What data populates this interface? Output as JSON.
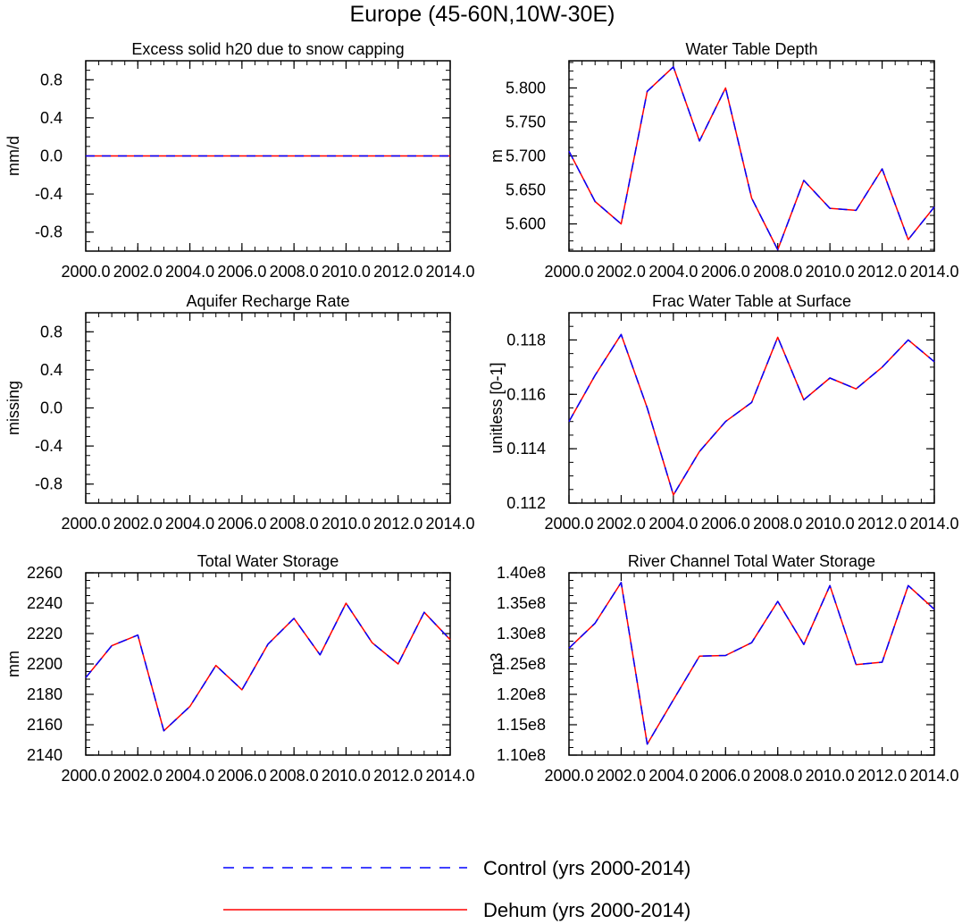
{
  "figure": {
    "title": "Europe (45-60N,10W-30E)"
  },
  "legend": {
    "placement": "bottom-center",
    "entries": [
      {
        "label": "Control (yrs 2000-2014)",
        "color": "#0000ff",
        "dash": "dashed"
      },
      {
        "label": "Dehum (yrs 2000-2014)",
        "color": "#ff0000",
        "dash": "solid"
      }
    ]
  },
  "chart_data": [
    {
      "type": "line",
      "title": "Excess solid h20 due to snow capping",
      "ylabel": "mm/d",
      "xlim": [
        2000,
        2014
      ],
      "ylim": [
        -1.0,
        1.0
      ],
      "yticks": [
        -0.8,
        -0.4,
        0.0,
        0.4,
        0.8
      ],
      "ytick_labels": [
        "-0.8",
        "-0.4",
        "0.0",
        "0.4",
        "0.8"
      ],
      "xticks": [
        2000,
        2002,
        2004,
        2006,
        2008,
        2010,
        2012,
        2014
      ],
      "xtick_labels": [
        "2000.0",
        "2002.0",
        "2004.0",
        "2006.0",
        "2008.0",
        "2010.0",
        "2012.0",
        "2014.0"
      ],
      "x": [
        2000,
        2001,
        2002,
        2003,
        2004,
        2005,
        2006,
        2007,
        2008,
        2009,
        2010,
        2011,
        2012,
        2013,
        2014
      ],
      "series": [
        {
          "name": "Control (yrs 2000-2014)",
          "values": [
            0,
            0,
            0,
            0,
            0,
            0,
            0,
            0,
            0,
            0,
            0,
            0,
            0,
            0,
            0
          ]
        },
        {
          "name": "Dehum (yrs 2000-2014)",
          "values": [
            0,
            0,
            0,
            0,
            0,
            0,
            0,
            0,
            0,
            0,
            0,
            0,
            0,
            0,
            0
          ]
        }
      ]
    },
    {
      "type": "line",
      "title": "Water Table Depth",
      "ylabel": "m",
      "xlim": [
        2000,
        2014
      ],
      "ylim": [
        5.56,
        5.84
      ],
      "yticks": [
        5.6,
        5.65,
        5.7,
        5.75,
        5.8
      ],
      "ytick_labels": [
        "5.600",
        "5.650",
        "5.700",
        "5.750",
        "5.800"
      ],
      "xticks": [
        2000,
        2002,
        2004,
        2006,
        2008,
        2010,
        2012,
        2014
      ],
      "xtick_labels": [
        "2000.0",
        "2002.0",
        "2004.0",
        "2006.0",
        "2008.0",
        "2010.0",
        "2012.0",
        "2014.0"
      ],
      "x": [
        2000,
        2001,
        2002,
        2003,
        2004,
        2005,
        2006,
        2007,
        2008,
        2009,
        2010,
        2011,
        2012,
        2013,
        2014
      ],
      "series": [
        {
          "name": "Control (yrs 2000-2014)",
          "values": [
            5.707,
            5.633,
            5.6,
            5.795,
            5.831,
            5.722,
            5.8,
            5.638,
            5.562,
            5.664,
            5.623,
            5.62,
            5.681,
            5.577,
            5.625
          ]
        },
        {
          "name": "Dehum (yrs 2000-2014)",
          "values": [
            5.707,
            5.633,
            5.6,
            5.795,
            5.831,
            5.722,
            5.8,
            5.638,
            5.562,
            5.664,
            5.623,
            5.62,
            5.681,
            5.577,
            5.625
          ]
        }
      ]
    },
    {
      "type": "line",
      "title": "Aquifer Recharge Rate",
      "ylabel": "missing",
      "xlim": [
        2000,
        2014
      ],
      "ylim": [
        -1.0,
        1.0
      ],
      "yticks": [
        -0.8,
        -0.4,
        0.0,
        0.4,
        0.8
      ],
      "ytick_labels": [
        "-0.8",
        "-0.4",
        "0.0",
        "0.4",
        "0.8"
      ],
      "xticks": [
        2000,
        2002,
        2004,
        2006,
        2008,
        2010,
        2012,
        2014
      ],
      "xtick_labels": [
        "2000.0",
        "2002.0",
        "2004.0",
        "2006.0",
        "2008.0",
        "2010.0",
        "2012.0",
        "2014.0"
      ],
      "x": [],
      "series": []
    },
    {
      "type": "line",
      "title": "Frac Water Table at Surface",
      "ylabel": "unitless [0-1]",
      "xlim": [
        2000,
        2014
      ],
      "ylim": [
        0.112,
        0.119
      ],
      "yticks": [
        0.112,
        0.114,
        0.116,
        0.118
      ],
      "ytick_labels": [
        "0.112",
        "0.114",
        "0.116",
        "0.118"
      ],
      "xticks": [
        2000,
        2002,
        2004,
        2006,
        2008,
        2010,
        2012,
        2014
      ],
      "xtick_labels": [
        "2000.0",
        "2002.0",
        "2004.0",
        "2006.0",
        "2008.0",
        "2010.0",
        "2012.0",
        "2014.0"
      ],
      "x": [
        2000,
        2001,
        2002,
        2003,
        2004,
        2005,
        2006,
        2007,
        2008,
        2009,
        2010,
        2011,
        2012,
        2013,
        2014
      ],
      "series": [
        {
          "name": "Control (yrs 2000-2014)",
          "values": [
            0.115,
            0.1167,
            0.1182,
            0.1155,
            0.1123,
            0.1139,
            0.115,
            0.1157,
            0.1181,
            0.1158,
            0.1166,
            0.1162,
            0.117,
            0.118,
            0.1172
          ]
        },
        {
          "name": "Dehum (yrs 2000-2014)",
          "values": [
            0.115,
            0.1167,
            0.1182,
            0.1155,
            0.1123,
            0.1139,
            0.115,
            0.1157,
            0.1181,
            0.1158,
            0.1166,
            0.1162,
            0.117,
            0.118,
            0.1172
          ]
        }
      ]
    },
    {
      "type": "line",
      "title": "Total Water Storage",
      "ylabel": "mm",
      "xlim": [
        2000,
        2014
      ],
      "ylim": [
        2140,
        2260
      ],
      "yticks": [
        2140,
        2160,
        2180,
        2200,
        2220,
        2240,
        2260
      ],
      "ytick_labels": [
        "2140",
        "2160",
        "2180",
        "2200",
        "2220",
        "2240",
        "2260"
      ],
      "xticks": [
        2000,
        2002,
        2004,
        2006,
        2008,
        2010,
        2012,
        2014
      ],
      "xtick_labels": [
        "2000.0",
        "2002.0",
        "2004.0",
        "2006.0",
        "2008.0",
        "2010.0",
        "2012.0",
        "2014.0"
      ],
      "x": [
        2000,
        2001,
        2002,
        2003,
        2004,
        2005,
        2006,
        2007,
        2008,
        2009,
        2010,
        2011,
        2012,
        2013,
        2014
      ],
      "series": [
        {
          "name": "Control (yrs 2000-2014)",
          "values": [
            2191,
            2212,
            2219,
            2156,
            2172,
            2199,
            2183,
            2213,
            2230,
            2206,
            2240,
            2214,
            2200,
            2234,
            2216
          ]
        },
        {
          "name": "Dehum (yrs 2000-2014)",
          "values": [
            2191,
            2212,
            2219,
            2156,
            2172,
            2199,
            2183,
            2213,
            2230,
            2206,
            2240,
            2214,
            2200,
            2234,
            2216
          ]
        }
      ]
    },
    {
      "type": "line",
      "title": "River Channel Total Water Storage",
      "ylabel": "m3",
      "xlim": [
        2000,
        2014
      ],
      "ylim": [
        110000000,
        140000000
      ],
      "yticks": [
        110000000,
        115000000,
        120000000,
        125000000,
        130000000,
        135000000,
        140000000
      ],
      "ytick_labels": [
        "1.10e8",
        "1.15e8",
        "1.20e8",
        "1.25e8",
        "1.30e8",
        "1.35e8",
        "1.40e8"
      ],
      "xticks": [
        2000,
        2002,
        2004,
        2006,
        2008,
        2010,
        2012,
        2014
      ],
      "xtick_labels": [
        "2000.0",
        "2002.0",
        "2004.0",
        "2006.0",
        "2008.0",
        "2010.0",
        "2012.0",
        "2014.0"
      ],
      "x": [
        2000,
        2001,
        2002,
        2003,
        2004,
        2005,
        2006,
        2007,
        2008,
        2009,
        2010,
        2011,
        2012,
        2013,
        2014
      ],
      "series": [
        {
          "name": "Control (yrs 2000-2014)",
          "values": [
            127600000,
            131700000,
            138400000,
            111800000,
            119100000,
            126300000,
            126400000,
            128500000,
            135300000,
            128200000,
            137900000,
            124900000,
            125300000,
            137900000,
            134000000
          ]
        },
        {
          "name": "Dehum (yrs 2000-2014)",
          "values": [
            127600000,
            131700000,
            138400000,
            111800000,
            119100000,
            126300000,
            126400000,
            128500000,
            135300000,
            128200000,
            137900000,
            124900000,
            125300000,
            137900000,
            134000000
          ]
        }
      ]
    }
  ]
}
